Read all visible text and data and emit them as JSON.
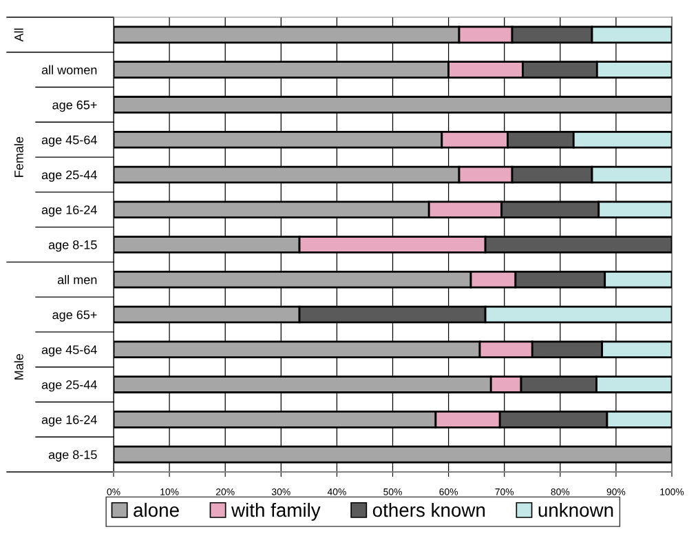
{
  "chart_data": {
    "type": "bar",
    "orientation": "horizontal",
    "stacked": true,
    "categories": [
      null,
      "all women",
      "age 65+",
      "age 45-64",
      "age 25-44",
      "age 16-24",
      "age 8-15",
      "all men",
      "age 65+",
      "age 45-64",
      "age 25-44",
      "age 16-24",
      "age 8-15"
    ],
    "annotations": [
      "All",
      "Female",
      "Male"
    ],
    "series": [
      {
        "name": "alone",
        "color": "#a6a6a6",
        "values": [
          61.9,
          60,
          100,
          58.8,
          61.9,
          56.5,
          33.3,
          64,
          33.3,
          65.6,
          67.6,
          57.7,
          100
        ]
      },
      {
        "name": "with family",
        "color": "#e8a8c0",
        "values": [
          9.5,
          13.3,
          null,
          11.8,
          9.5,
          13,
          33.3,
          8,
          null,
          9.4,
          5.4,
          11.5,
          null
        ]
      },
      {
        "name": "others known",
        "color": "#5a5a5a",
        "values": [
          14.3,
          13.3,
          null,
          11.8,
          14.3,
          17.4,
          33.4,
          16,
          33.3,
          12.5,
          13.5,
          19.2,
          null
        ]
      },
      {
        "name": "unknown",
        "color": "#c4e8e8",
        "values": [
          14.3,
          13.4,
          null,
          17.6,
          14.3,
          13.1,
          null,
          12,
          33.4,
          12.5,
          13.5,
          11.6,
          null
        ]
      }
    ],
    "xlim": [
      0,
      100
    ],
    "xticks": [
      {
        "value": 0,
        "label": "0%"
      },
      {
        "value": 10,
        "label": "10%"
      },
      {
        "value": 20,
        "label": "20%"
      },
      {
        "value": 30,
        "label": "30%"
      },
      {
        "value": 40,
        "label": "40%"
      },
      {
        "value": 50,
        "label": "50%"
      },
      {
        "value": 60,
        "label": "60%"
      },
      {
        "value": 70,
        "label": "70%"
      },
      {
        "value": 80,
        "label": "80%"
      },
      {
        "value": 90,
        "label": "90%"
      },
      {
        "value": 100,
        "label": "100%"
      }
    ],
    "grid": "x",
    "legend": "bottom"
  }
}
